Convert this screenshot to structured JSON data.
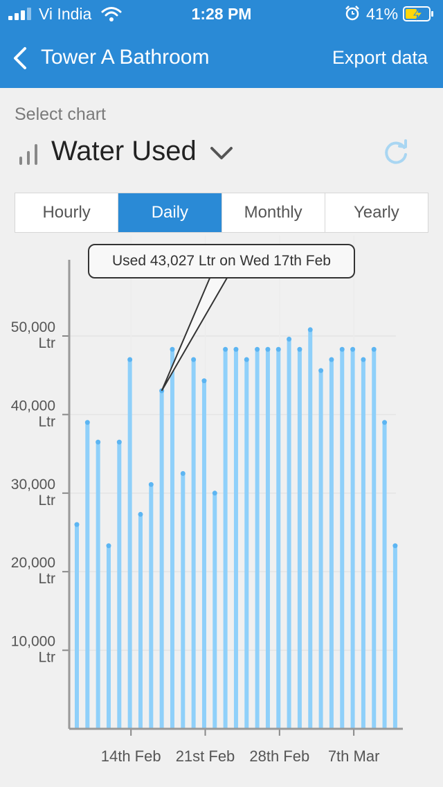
{
  "status_bar": {
    "carrier": "Vi India",
    "time": "1:28 PM",
    "battery_percent": "41%",
    "icons": [
      "signal-icon",
      "wifi-icon",
      "alarm-icon",
      "battery-charging-icon"
    ]
  },
  "nav": {
    "title": "Tower A Bathroom",
    "export_label": "Export data",
    "back_icon": "back-chevron-icon",
    "bg_color": "#2a8ad6"
  },
  "chart_select": {
    "label": "Select chart",
    "selected": "Water Used",
    "icons": [
      "bar-chart-icon",
      "chevron-down-icon",
      "refresh-icon"
    ]
  },
  "tabs": [
    {
      "label": "Hourly",
      "active": false
    },
    {
      "label": "Daily",
      "active": true
    },
    {
      "label": "Monthly",
      "active": false
    },
    {
      "label": "Yearly",
      "active": false
    }
  ],
  "tooltip": {
    "text": "Used 43,027 Ltr on Wed 17th Feb"
  },
  "chart_data": {
    "type": "bar",
    "series_color": "#8fd0fa",
    "categories": [
      "9 Feb",
      "10 Feb",
      "11 Feb",
      "12 Feb",
      "13 Feb",
      "14 Feb",
      "15 Feb",
      "16 Feb",
      "17 Feb",
      "18 Feb",
      "19 Feb",
      "20 Feb",
      "21 Feb",
      "22 Feb",
      "23 Feb",
      "24 Feb",
      "25 Feb",
      "26 Feb",
      "27 Feb",
      "28 Feb",
      "1 Mar",
      "2 Mar",
      "3 Mar",
      "4 Mar",
      "5 Mar",
      "6 Mar",
      "7 Mar",
      "8 Mar",
      "9 Mar",
      "10 Mar",
      "11 Mar"
    ],
    "values": [
      26000,
      39000,
      36500,
      23300,
      36500,
      47000,
      27300,
      31100,
      43027,
      48300,
      32500,
      47000,
      44300,
      30000,
      48300,
      48300,
      47000,
      48300,
      48300,
      48300,
      49600,
      48300,
      50800,
      45600,
      47000,
      48300,
      48300,
      47000,
      48300,
      39000,
      23300
    ],
    "ylim": [
      0,
      60000
    ],
    "yticks": [
      {
        "value": 10000,
        "label": [
          "10,000",
          "Ltr"
        ]
      },
      {
        "value": 20000,
        "label": [
          "20,000",
          "Ltr"
        ]
      },
      {
        "value": 30000,
        "label": [
          "30,000",
          "Ltr"
        ]
      },
      {
        "value": 40000,
        "label": [
          "40,000",
          "Ltr"
        ]
      },
      {
        "value": 50000,
        "label": [
          "50,000",
          "Ltr"
        ]
      }
    ],
    "xticks": [
      {
        "index": 5.1,
        "label": "14th Feb"
      },
      {
        "index": 12.1,
        "label": "21st Feb"
      },
      {
        "index": 19.1,
        "label": "28th Feb"
      },
      {
        "index": 26.1,
        "label": "7th Mar"
      }
    ],
    "highlight_index": 8,
    "grid": true
  }
}
